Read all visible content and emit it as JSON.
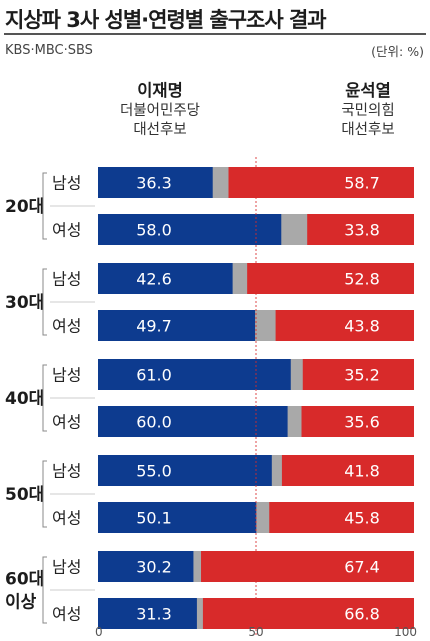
{
  "header": {
    "title": "지상파 3사 성별·연령별 출구조사 결과",
    "source": "KBS·MBC·SBS",
    "unit": "(단위: %)"
  },
  "candidates": {
    "left": {
      "name": "이재명",
      "party_line1": "더불어민주당",
      "party_line2": "대선후보"
    },
    "right": {
      "name": "윤석열",
      "party_line1": "국민의힘",
      "party_line2": "대선후보"
    }
  },
  "colors": {
    "left": "#0d3b8f",
    "right": "#d82a2a",
    "other": "#a9a9a9",
    "divider": "#d0d0d0",
    "midline": "#d82a2a"
  },
  "chart_data": {
    "type": "bar",
    "stacked": true,
    "orientation": "horizontal",
    "xlim": [
      0,
      100
    ],
    "x_ticks": [
      "0",
      "50",
      "100"
    ],
    "groups": [
      {
        "label": "20대",
        "rows": [
          {
            "label": "남성",
            "left": 36.3,
            "right": 58.7
          },
          {
            "label": "여성",
            "left": 58.0,
            "right": 33.8
          }
        ]
      },
      {
        "label": "30대",
        "rows": [
          {
            "label": "남성",
            "left": 42.6,
            "right": 52.8
          },
          {
            "label": "여성",
            "left": 49.7,
            "right": 43.8
          }
        ]
      },
      {
        "label": "40대",
        "rows": [
          {
            "label": "남성",
            "left": 61.0,
            "right": 35.2
          },
          {
            "label": "여성",
            "left": 60.0,
            "right": 35.6
          }
        ]
      },
      {
        "label": "50대",
        "rows": [
          {
            "label": "남성",
            "left": 55.0,
            "right": 41.8
          },
          {
            "label": "여성",
            "left": 50.1,
            "right": 45.8
          }
        ]
      },
      {
        "label": "60대\n이상",
        "rows": [
          {
            "label": "남성",
            "left": 30.2,
            "right": 67.4
          },
          {
            "label": "여성",
            "left": 31.3,
            "right": 66.8
          }
        ]
      }
    ]
  }
}
